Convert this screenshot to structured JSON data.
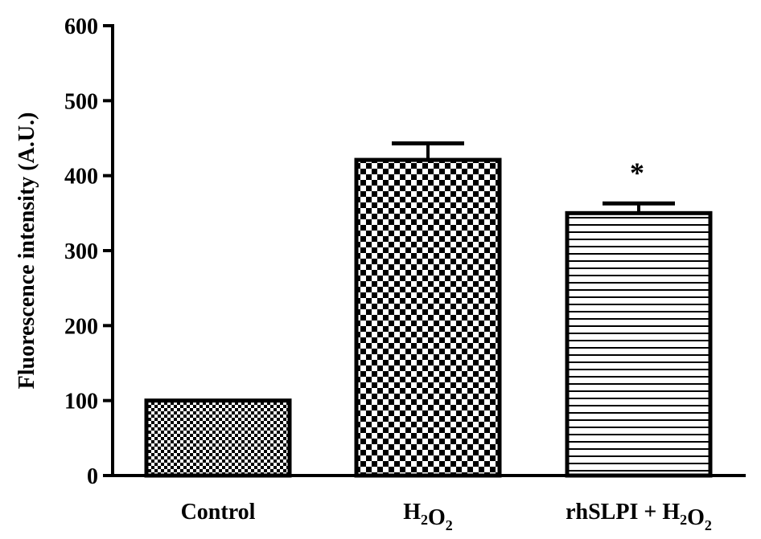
{
  "chart_data": {
    "type": "bar",
    "title": "",
    "xlabel": "",
    "ylabel": "Fluorescence intensity (A.U.)",
    "ylim": [
      0,
      600
    ],
    "yticks": [
      0,
      100,
      200,
      300,
      400,
      500,
      600
    ],
    "grid": false,
    "categories": [
      {
        "label": "Control",
        "parts": [
          {
            "t": "Control"
          }
        ]
      },
      {
        "label": "H2O2",
        "parts": [
          {
            "t": "H"
          },
          {
            "t": "2",
            "sub": true
          },
          {
            "t": "O"
          },
          {
            "t": "2",
            "sub": true
          }
        ]
      },
      {
        "label": "rhSLPI + H2O2",
        "parts": [
          {
            "t": "rhSLPI + H"
          },
          {
            "t": "2",
            "sub": true
          },
          {
            "t": "O"
          },
          {
            "t": "2",
            "sub": true
          }
        ]
      }
    ],
    "values": [
      100,
      421,
      350
    ],
    "errors": [
      0,
      22,
      13
    ],
    "patterns": [
      "fine-checker",
      "checker",
      "horizontal-lines"
    ],
    "annotations": [
      {
        "category_index": 2,
        "text": "*"
      }
    ]
  }
}
